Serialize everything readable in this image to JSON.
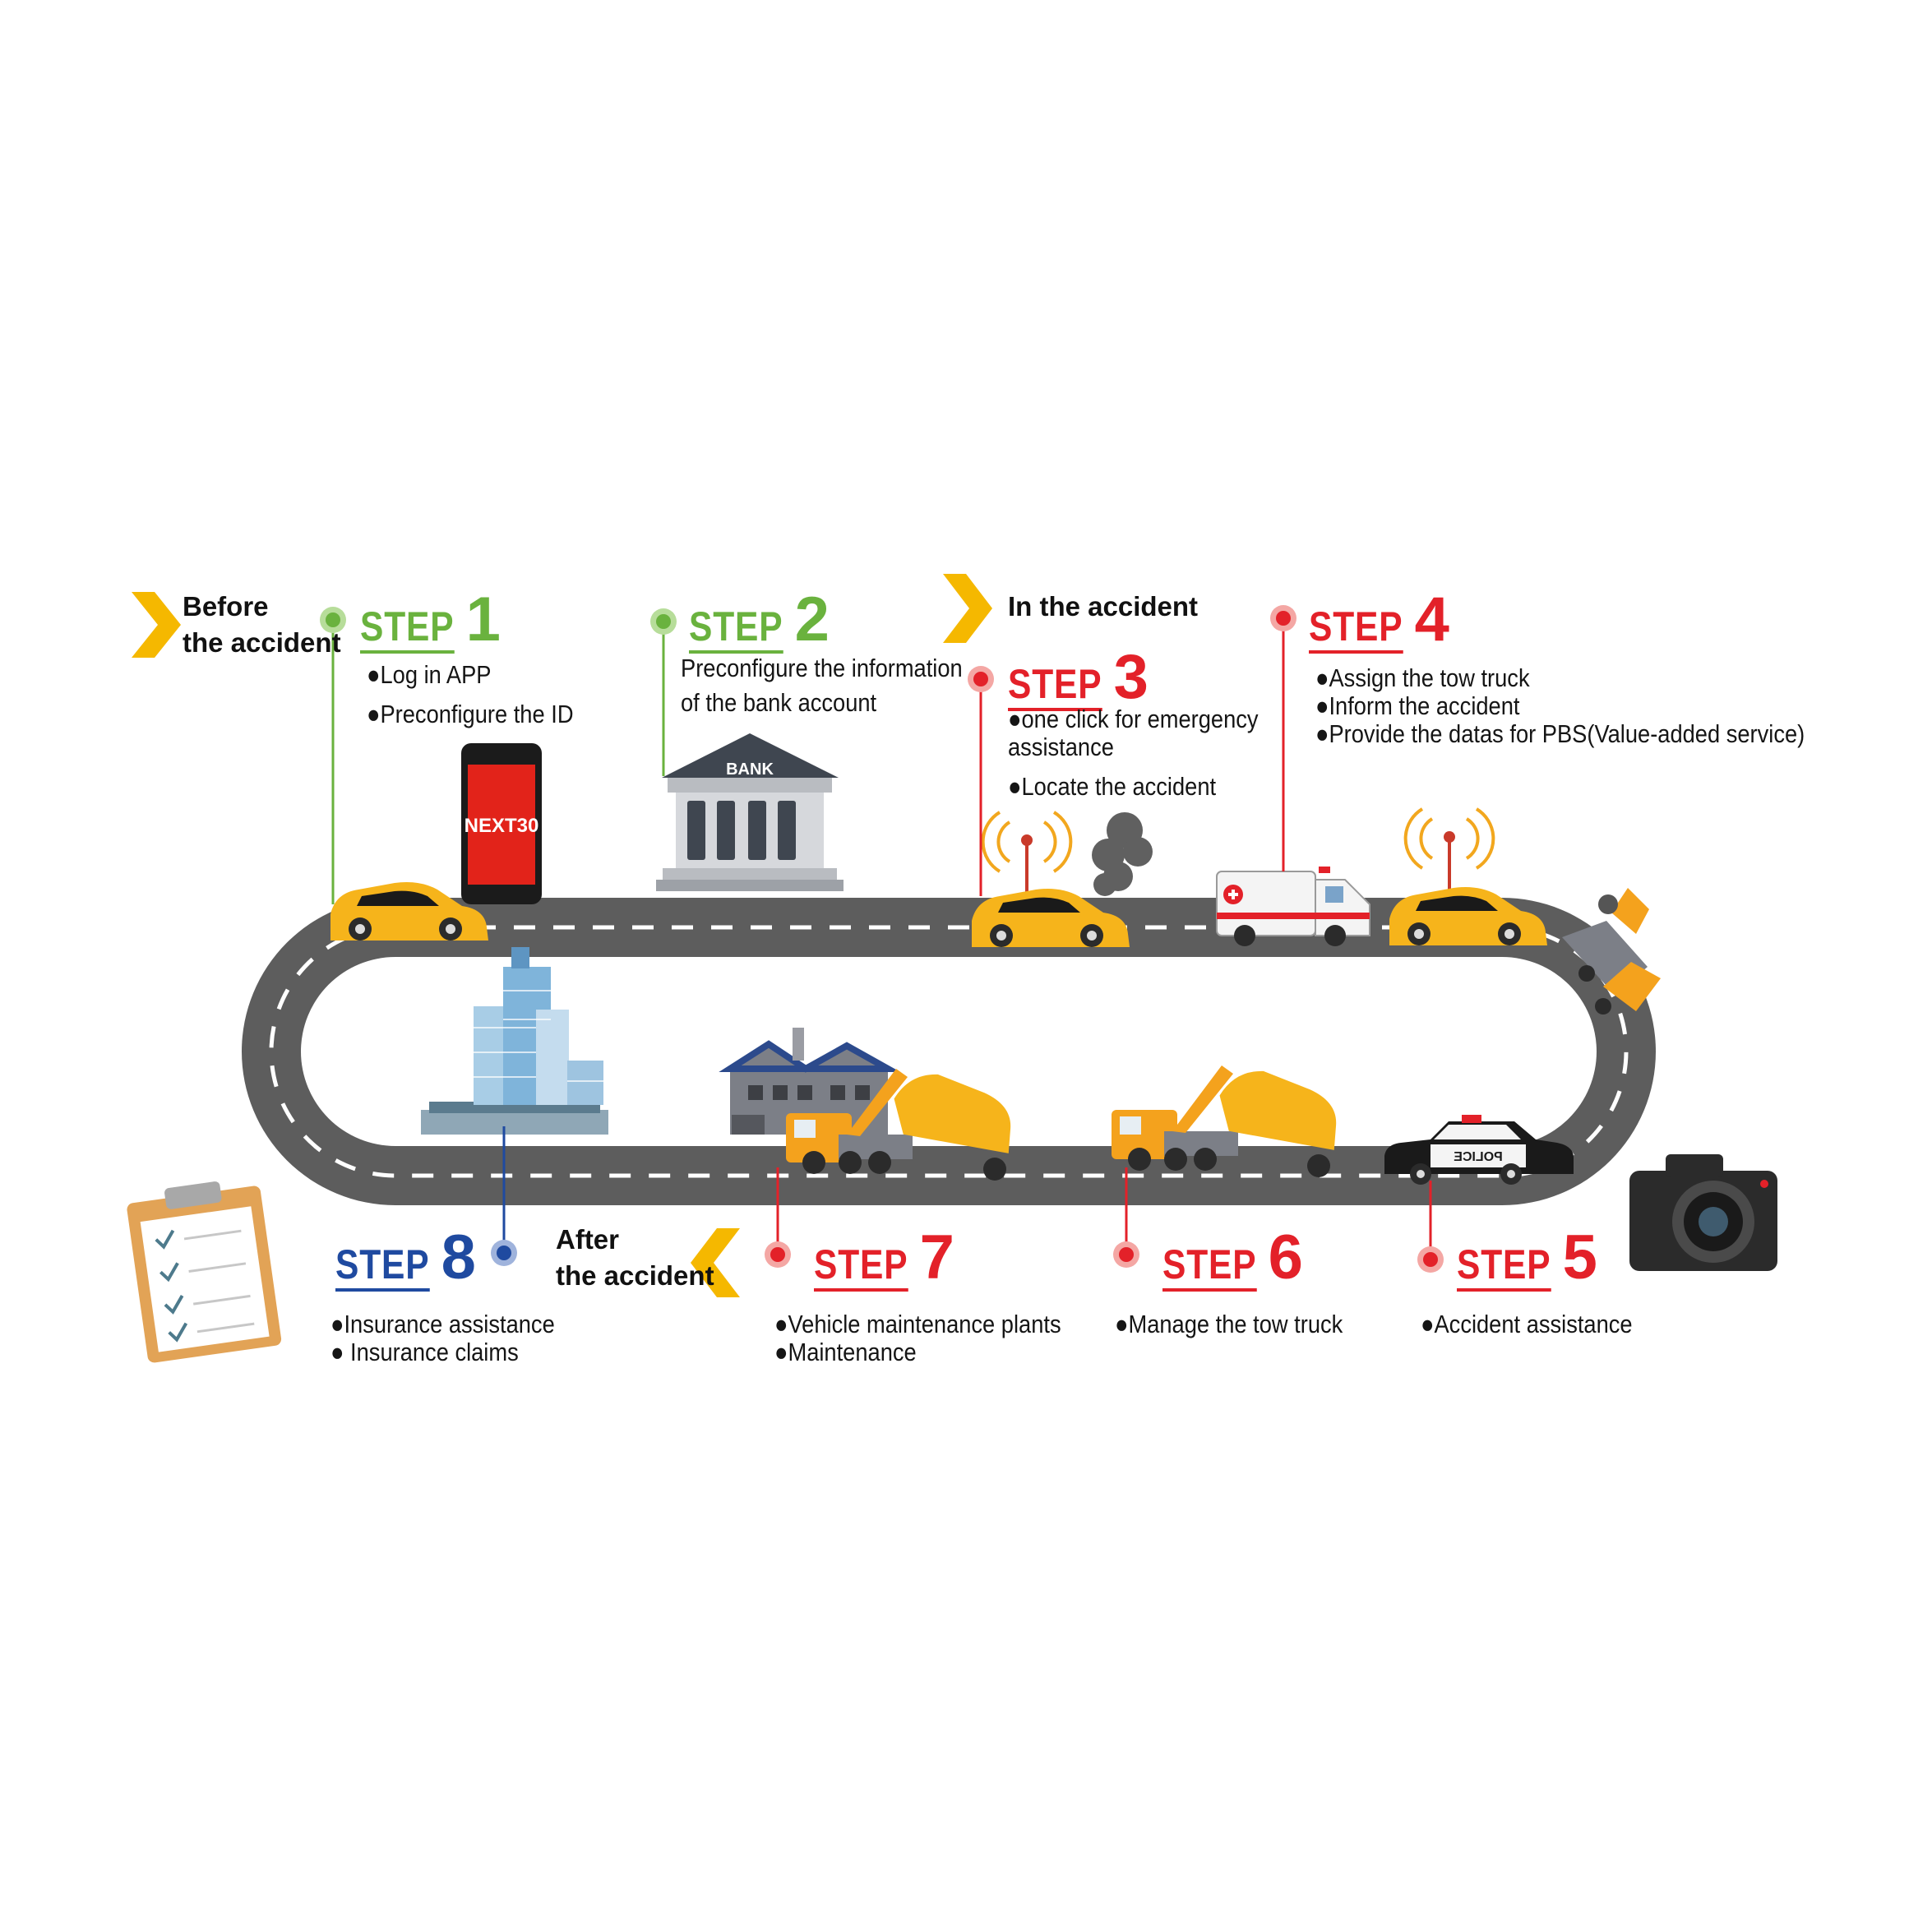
{
  "colors": {
    "road": "#5d5d5d",
    "road_dash": "#ffffff",
    "phase_arrow": "#f5b800",
    "before": "#6ab23e",
    "during": "#e32129",
    "after": "#1f4aa0",
    "car_yellow": "#f6b41b",
    "tow_orange": "#f4a21d"
  },
  "phases": {
    "before": {
      "line1": "Before",
      "line2": "the accident"
    },
    "during": {
      "line1": "In the accident"
    },
    "after": {
      "line1": "After",
      "line2": "the accident"
    }
  },
  "steps": [
    {
      "word": "STEP",
      "number": "1",
      "phase": "before",
      "lines": [
        "●Log in APP",
        "●Preconfigure the ID"
      ]
    },
    {
      "word": "STEP",
      "number": "2",
      "phase": "before",
      "lines": [
        "Preconfigure the information",
        "of the bank account"
      ]
    },
    {
      "word": "STEP",
      "number": "3",
      "phase": "during",
      "lines": [
        "●one click for emergency",
        "assistance",
        "●Locate the accident"
      ]
    },
    {
      "word": "STEP",
      "number": "4",
      "phase": "during",
      "lines": [
        "●Assign the tow truck",
        "●Inform the accident",
        "●Provide the datas for PBS(Value-added service)"
      ]
    },
    {
      "word": "STEP",
      "number": "5",
      "phase": "during",
      "lines": [
        "●Accident assistance"
      ]
    },
    {
      "word": "STEP",
      "number": "6",
      "phase": "after",
      "lines": [
        "●Manage the tow truck"
      ]
    },
    {
      "word": "STEP",
      "number": "7",
      "phase": "after",
      "lines": [
        "●Vehicle maintenance plants",
        "●Maintenance"
      ]
    },
    {
      "word": "STEP",
      "number": "8",
      "phase": "after",
      "lines": [
        "●Insurance assistance",
        "● Insurance claims"
      ]
    }
  ],
  "illustrations": {
    "phone_screen_text": "NEXT30",
    "bank_sign": "BANK",
    "police_car_text": "POLICE"
  },
  "icons": [
    "phone-icon",
    "bank-icon",
    "ambulance-icon",
    "police-car-icon",
    "tow-truck-icon",
    "factory-icon",
    "office-building-icon",
    "clipboard-icon",
    "camera-icon",
    "signal-icon",
    "smoke-icon"
  ]
}
